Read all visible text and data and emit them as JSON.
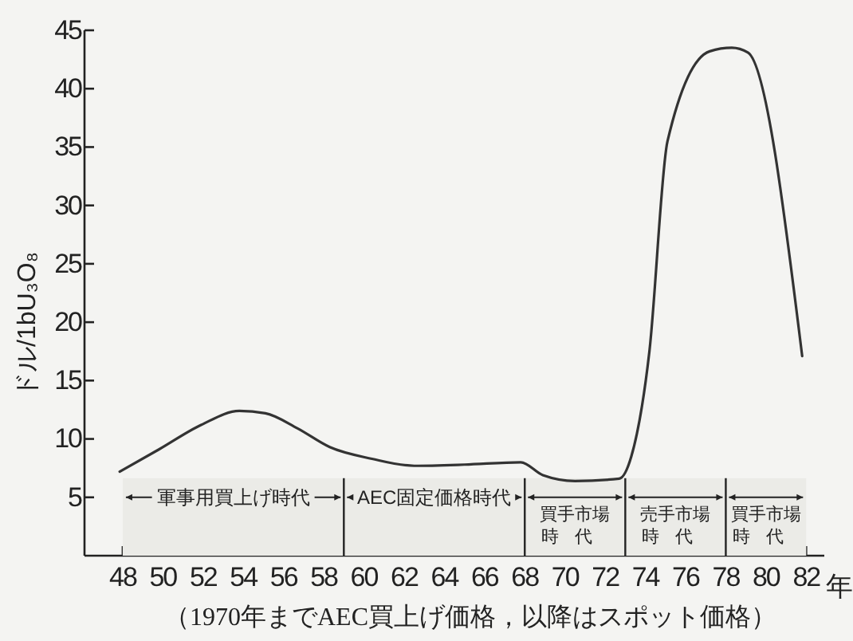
{
  "chart_data": {
    "type": "line",
    "ylabel": "ドル/1bU₃O₈",
    "xlabel": "年",
    "x": [
      47.85,
      49.8,
      51.9,
      53.8,
      55.1,
      56.7,
      58.3,
      60.4,
      62.5,
      65,
      67.8,
      68.9,
      70.5,
      72.7,
      73.3,
      74.2,
      75.1,
      77.2,
      78.3,
      79.1,
      81.8
    ],
    "series": [
      {
        "color": "#333333",
        "values": [
          7.2,
          9.1,
          11.2,
          12.4,
          12.2,
          10.9,
          9.3,
          8.3,
          7.7,
          7.8,
          8.0,
          6.9,
          6.4,
          6.6,
          8.5,
          17.5,
          35.5,
          43.2,
          43.5,
          43.1,
          17.1
        ]
      }
    ],
    "xlim": [
      46.1,
      82.9
    ],
    "xticks": [
      48,
      50,
      52,
      54,
      56,
      58,
      60,
      62,
      64,
      66,
      68,
      70,
      72,
      74,
      76,
      78,
      80,
      82
    ],
    "ylim": [
      0,
      45
    ],
    "yticks": [
      5,
      10,
      15,
      20,
      25,
      30,
      35,
      40,
      45
    ],
    "grid": false,
    "marker": "none",
    "line_style": "solid",
    "bands": [
      {
        "axis": "x",
        "from": 48,
        "to": 59,
        "label": "軍事用買上げ時代",
        "color": "#ebebe7"
      },
      {
        "axis": "x",
        "from": 59,
        "to": 68,
        "label": "AEC固定価格時代",
        "color": "#ebebe7"
      },
      {
        "axis": "x",
        "from": 68,
        "to": 73,
        "label": "買手市場時代",
        "color": "#ebebe7"
      },
      {
        "axis": "x",
        "from": 73,
        "to": 78,
        "label": "売手市場時代",
        "color": "#ebebe7"
      },
      {
        "axis": "x",
        "from": 78,
        "to": 82,
        "label": "買手市場時代",
        "color": "#ebebe7"
      }
    ],
    "annotations": [
      "（1970年までAEC買上げ価格，以降はスポット価格）"
    ]
  }
}
